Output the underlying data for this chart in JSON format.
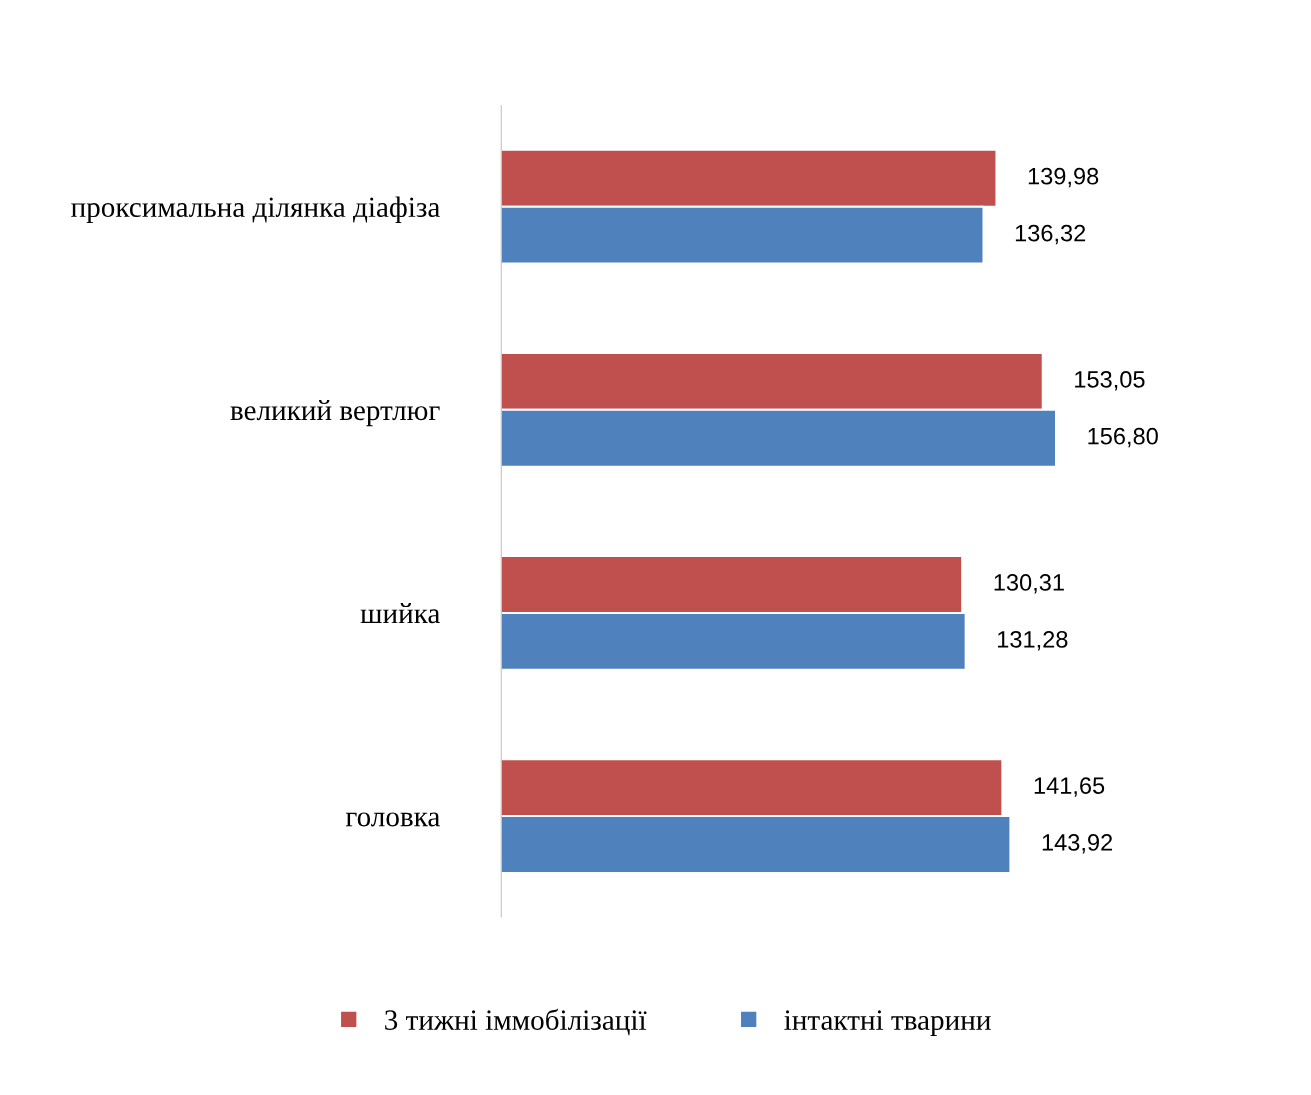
{
  "chart_data": {
    "type": "bar",
    "orientation": "horizontal",
    "categories": [
      "проксимальна ділянка діафіза",
      "великий вертлюг",
      "шийка",
      "головка"
    ],
    "series": [
      {
        "name": "3 тижні іммобілізації",
        "color": "#c0504d",
        "values": [
          139.98,
          153.05,
          130.31,
          141.65
        ],
        "value_labels": [
          "139,98",
          "153,05",
          "130,31",
          "141,65"
        ]
      },
      {
        "name": "інтактні тварини",
        "color": "#4f81bd",
        "values": [
          136.32,
          156.8,
          131.28,
          143.92
        ],
        "value_labels": [
          "136,32",
          "156,80",
          "131,28",
          "143,92"
        ]
      }
    ],
    "tick_labels": "y",
    "legend": "bottom"
  }
}
